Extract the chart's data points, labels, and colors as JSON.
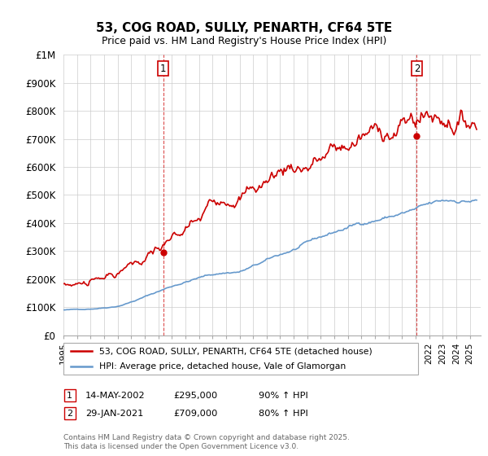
{
  "title": "53, COG ROAD, SULLY, PENARTH, CF64 5TE",
  "subtitle": "Price paid vs. HM Land Registry's House Price Index (HPI)",
  "legend_line1": "53, COG ROAD, SULLY, PENARTH, CF64 5TE (detached house)",
  "legend_line2": "HPI: Average price, detached house, Vale of Glamorgan",
  "footnote": "Contains HM Land Registry data © Crown copyright and database right 2025.\nThis data is licensed under the Open Government Licence v3.0.",
  "annotation1": {
    "num": "1",
    "date": "14-MAY-2002",
    "price": "£295,000",
    "pct": "90% ↑ HPI"
  },
  "annotation2": {
    "num": "2",
    "date": "29-JAN-2021",
    "price": "£709,000",
    "pct": "80% ↑ HPI"
  },
  "red_color": "#cc0000",
  "blue_color": "#6699cc",
  "vline_color": "#cc0000",
  "grid_color": "#cccccc",
  "bg_color": "#ffffff",
  "ylim": [
    0,
    1000000
  ],
  "yticks": [
    0,
    100000,
    200000,
    300000,
    400000,
    500000,
    600000,
    700000,
    800000,
    900000,
    1000000
  ],
  "ytick_labels": [
    "£0",
    "£100K",
    "£200K",
    "£300K",
    "£400K",
    "£500K",
    "£600K",
    "£700K",
    "£800K",
    "£900K",
    "£1M"
  ],
  "vline1_x": 2002.37,
  "vline2_x": 2021.08,
  "sale1_x": 2002.37,
  "sale1_y": 295000,
  "sale2_x": 2021.08,
  "sale2_y": 709000,
  "xmin": 1995,
  "xmax": 2025.8
}
